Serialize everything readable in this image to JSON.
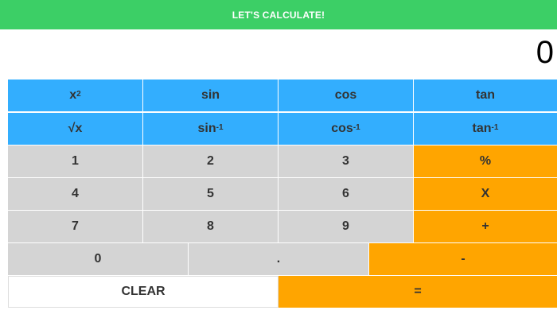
{
  "header": {
    "title": "LET'S CALCULATE!"
  },
  "display": {
    "value": "0"
  },
  "functions": {
    "square": {
      "base": "x",
      "sup": "2"
    },
    "sin": "sin",
    "cos": "cos",
    "tan": "tan",
    "sqrt": "√x",
    "asin": {
      "base": "sin",
      "sup": "-1"
    },
    "acos": {
      "base": "cos",
      "sup": "-1"
    },
    "atan": {
      "base": "tan",
      "sup": "-1"
    }
  },
  "keys": {
    "one": "1",
    "two": "2",
    "three": "3",
    "four": "4",
    "five": "5",
    "six": "6",
    "seven": "7",
    "eight": "8",
    "nine": "9",
    "zero": "0",
    "dot": ".",
    "divide": "%",
    "multiply": "X",
    "add": "+",
    "subtract": "-",
    "clear": "CLEAR",
    "equals": "="
  },
  "colors": {
    "header": "#3ccf66",
    "function_keys": "#33aefe",
    "number_keys": "#d4d4d4",
    "operator_keys": "#ffa500"
  }
}
